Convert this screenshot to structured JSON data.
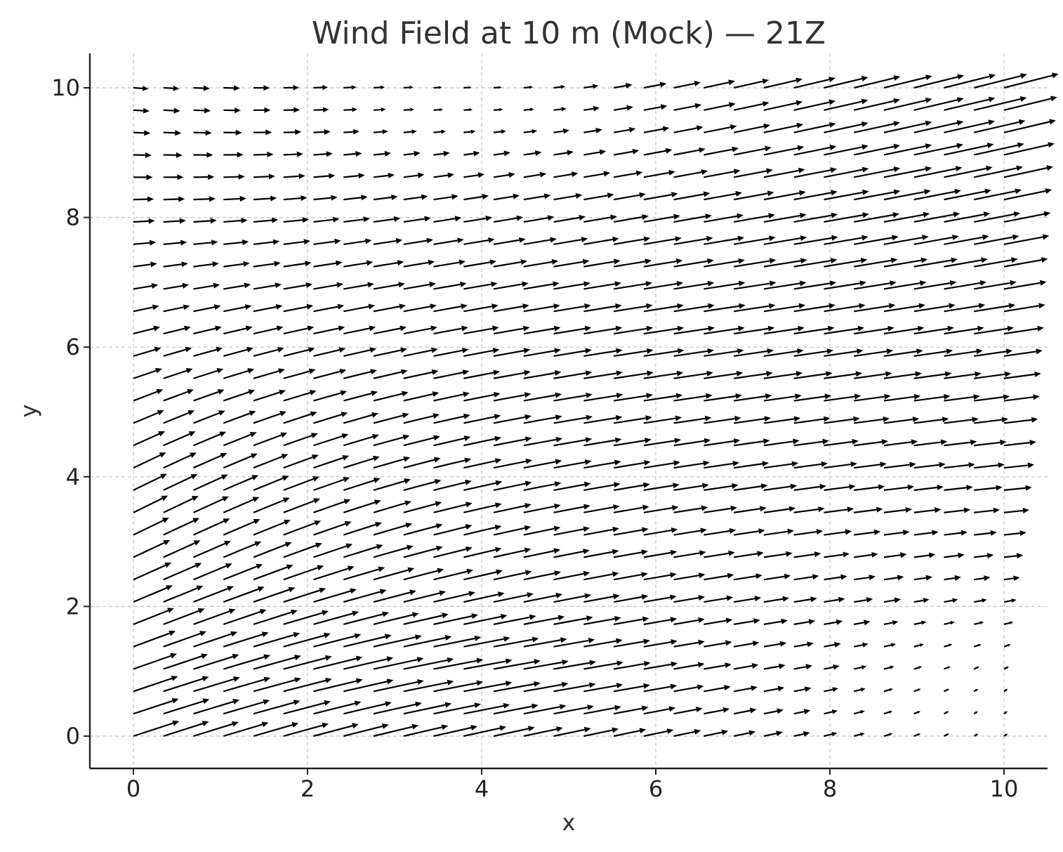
{
  "chart_data": {
    "type": "quiver",
    "title": "Wind Field at 10 m (Mock) — 21Z",
    "xlabel": "x",
    "ylabel": "y",
    "xlim": [
      -0.5,
      10.5
    ],
    "ylim": [
      -0.5,
      10.5
    ],
    "xticks": [
      0,
      2,
      4,
      6,
      8,
      10
    ],
    "yticks": [
      0,
      2,
      4,
      6,
      8,
      10
    ],
    "xtick_labels": [
      "0",
      "2",
      "4",
      "6",
      "8",
      "10"
    ],
    "ytick_labels": [
      "0",
      "2",
      "4",
      "6",
      "8",
      "10"
    ],
    "grid": true,
    "grid_x": {
      "start": 0,
      "stop": 10,
      "count": 30
    },
    "grid_y": {
      "start": 0,
      "stop": 10,
      "count": 30
    },
    "arrow_scale_data_units_per_speed": 0.33,
    "field_description": "u = 1.0 + 0.28*y*(x/10) ; v = 0.55*sin(pi*x/6)*cos(pi*y/12) + 0.1*(x/10)*(y/10) scaled to depict the mock wind field shown",
    "colors": {
      "arrow": "#000000",
      "grid": "#c4c4c4",
      "text": "#333333"
    }
  }
}
